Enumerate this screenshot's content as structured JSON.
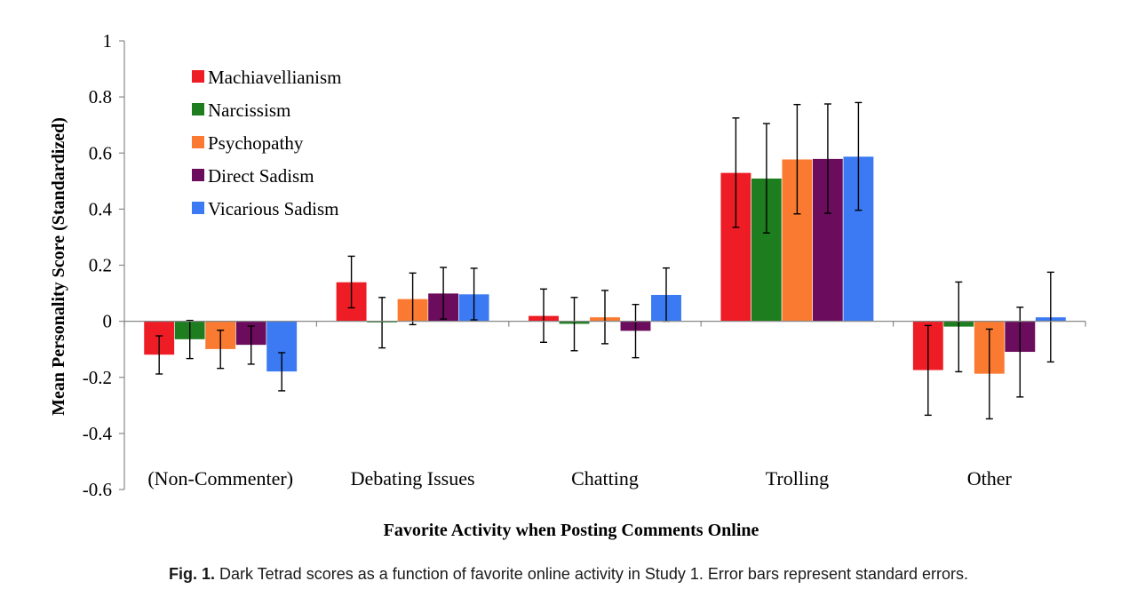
{
  "chart_data": {
    "type": "bar",
    "xlabel": "Favorite Activity when Posting Comments Online",
    "ylabel": "Mean Personality Score (Standardized)",
    "ylim": [
      -0.6,
      1
    ],
    "yticks": [
      1,
      0.8,
      0.6,
      0.4,
      0.2,
      0,
      -0.2,
      -0.4,
      -0.6
    ],
    "ytick_labels": [
      "1",
      "0.8",
      "0.6",
      "0.4",
      "0.2",
      "0",
      "-0.2",
      "-0.4",
      "-0.6"
    ],
    "categories": [
      "(Non-Commenter)",
      "Debating Issues",
      "Chatting",
      "Trolling",
      "Other"
    ],
    "legend_position": "top-left",
    "grid": false,
    "error_bars": "standard error",
    "series": [
      {
        "name": "Machiavellianism",
        "color": "#ee1c25",
        "values": [
          -0.12,
          0.14,
          0.02,
          0.53,
          -0.175
        ],
        "errors": [
          0.068,
          0.092,
          0.095,
          0.195,
          0.16
        ]
      },
      {
        "name": "Narcissism",
        "color": "#1e7d1e",
        "values": [
          -0.065,
          -0.005,
          -0.01,
          0.51,
          -0.02
        ],
        "errors": [
          0.068,
          0.09,
          0.095,
          0.195,
          0.16
        ]
      },
      {
        "name": "Psychopathy",
        "color": "#f97a30",
        "values": [
          -0.1,
          0.08,
          0.015,
          0.578,
          -0.188
        ],
        "errors": [
          0.068,
          0.092,
          0.095,
          0.195,
          0.16
        ]
      },
      {
        "name": "Direct Sadism",
        "color": "#6b0c5c",
        "values": [
          -0.085,
          0.1,
          -0.035,
          0.58,
          -0.11
        ],
        "errors": [
          0.068,
          0.092,
          0.095,
          0.195,
          0.16
        ]
      },
      {
        "name": "Vicarious Sadism",
        "color": "#3b7af2",
        "values": [
          -0.18,
          0.097,
          0.095,
          0.588,
          0.015
        ],
        "errors": [
          0.068,
          0.092,
          0.095,
          0.192,
          0.16
        ]
      }
    ]
  },
  "caption": {
    "label": "Fig. 1.",
    "text": "Dark Tetrad scores as a function of favorite online activity in Study 1. Error bars represent standard errors."
  }
}
